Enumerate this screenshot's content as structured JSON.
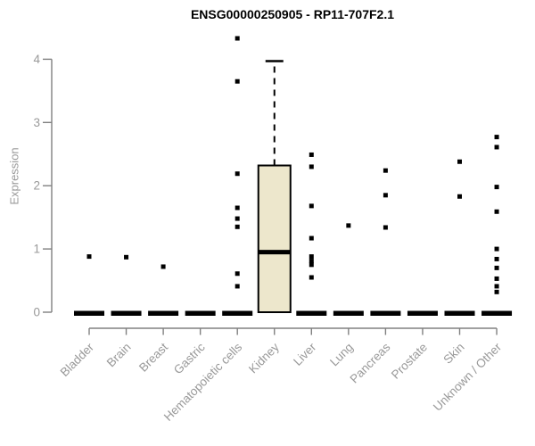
{
  "chart_data": {
    "type": "boxplot",
    "title": "ENSG00000250905 - RP11-707F2.1",
    "ylabel": "Expression",
    "xlabel": "",
    "ylim": [
      0,
      4
    ],
    "yticks": [
      "0",
      "1",
      "2",
      "3",
      "4"
    ],
    "grid": false,
    "legend": "none",
    "categories": [
      "Bladder",
      "Brain",
      "Breast",
      "Gastric",
      "Hematopoietic cells",
      "Kidney",
      "Liver",
      "Lung",
      "Pancreas",
      "Prostate",
      "Skin",
      "Unknown / Other"
    ],
    "groups": [
      {
        "name": "Bladder",
        "zero_bar": true,
        "box": null,
        "points": [
          0.88
        ]
      },
      {
        "name": "Brain",
        "zero_bar": true,
        "box": null,
        "points": [
          0.87
        ]
      },
      {
        "name": "Breast",
        "zero_bar": true,
        "box": null,
        "points": [
          0.72
        ]
      },
      {
        "name": "Gastric",
        "zero_bar": true,
        "box": null,
        "points": []
      },
      {
        "name": "Hematopoietic cells",
        "zero_bar": true,
        "box": null,
        "points": [
          4.33,
          3.65,
          2.19,
          1.65,
          1.48,
          1.35,
          0.61,
          0.41
        ]
      },
      {
        "name": "Kidney",
        "zero_bar": false,
        "box": {
          "q1": 0,
          "median": 0.95,
          "q3": 2.32,
          "whisker_high": 3.97,
          "whisker_low": 0
        },
        "points": []
      },
      {
        "name": "Liver",
        "zero_bar": true,
        "box": null,
        "points": [
          2.49,
          2.3,
          1.68,
          1.17,
          0.88,
          0.81,
          0.75,
          0.55
        ]
      },
      {
        "name": "Lung",
        "zero_bar": true,
        "box": null,
        "points": [
          1.37
        ]
      },
      {
        "name": "Pancreas",
        "zero_bar": true,
        "box": null,
        "points": [
          2.24,
          1.85,
          1.34
        ]
      },
      {
        "name": "Prostate",
        "zero_bar": true,
        "box": null,
        "points": []
      },
      {
        "name": "Skin",
        "zero_bar": true,
        "box": null,
        "points": [
          2.38,
          1.83
        ]
      },
      {
        "name": "Unknown / Other",
        "zero_bar": true,
        "box": null,
        "points": [
          2.77,
          2.61,
          1.98,
          1.59,
          1.0,
          0.84,
          0.7,
          0.53,
          0.41,
          0.32
        ]
      }
    ],
    "colors": {
      "box_fill": "#EDE7CC",
      "box_stroke": "#000000",
      "median": "#000000",
      "point": "#000000",
      "axis_line": "#808080",
      "tick_label": "#999999",
      "title": "#000000"
    }
  }
}
